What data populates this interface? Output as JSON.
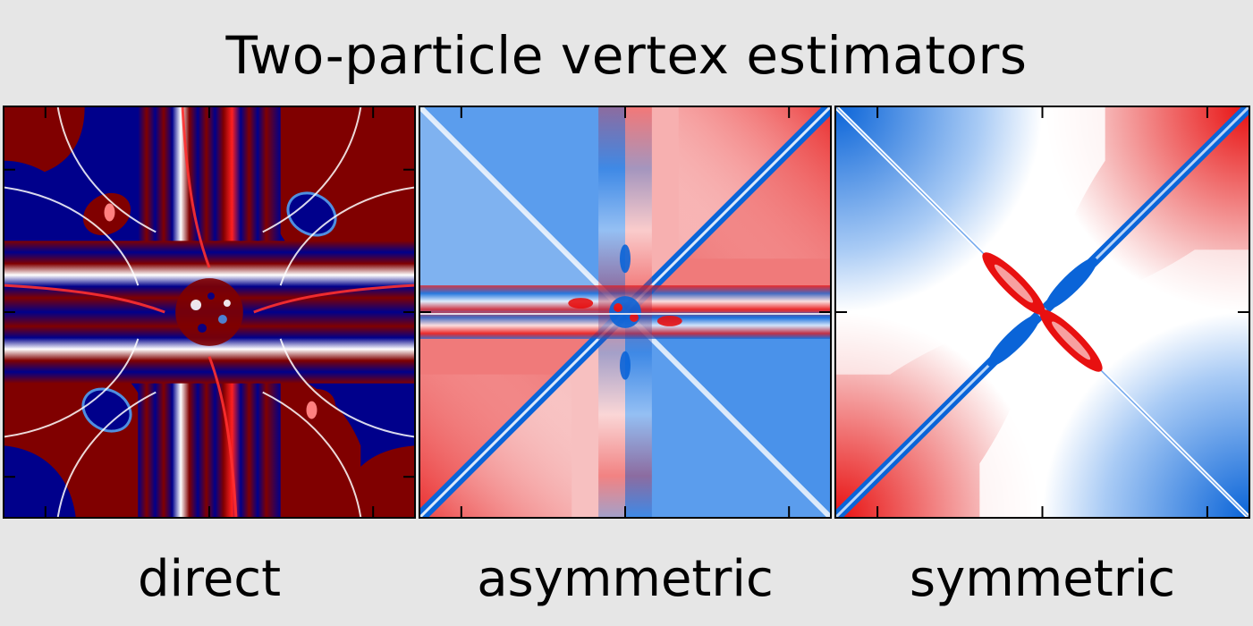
{
  "title": "Two-particle vertex estimators",
  "chart_data": [
    {
      "type": "heatmap",
      "panel": "direct",
      "label": "direct",
      "colormap": "seismic",
      "colors": {
        "negative": "#00008b",
        "neutral": "#ffffff",
        "positive": "#800000"
      },
      "xticks": 4,
      "yticks": 4,
      "xlabel": "",
      "ylabel": ""
    },
    {
      "type": "heatmap",
      "panel": "asymmetric",
      "label": "asymmetric",
      "colormap": "bwr",
      "colors": {
        "negative": "#0a64d8",
        "neutral": "#ffffff",
        "positive": "#e81010"
      },
      "xticks": 3,
      "yticks": 3,
      "xlabel": "",
      "ylabel": ""
    },
    {
      "type": "heatmap",
      "panel": "symmetric",
      "label": "symmetric",
      "colormap": "bwr",
      "colors": {
        "negative": "#0a64d8",
        "neutral": "#ffffff",
        "positive": "#e81010"
      },
      "xticks": 3,
      "yticks": 3,
      "xlabel": "",
      "ylabel": ""
    }
  ]
}
